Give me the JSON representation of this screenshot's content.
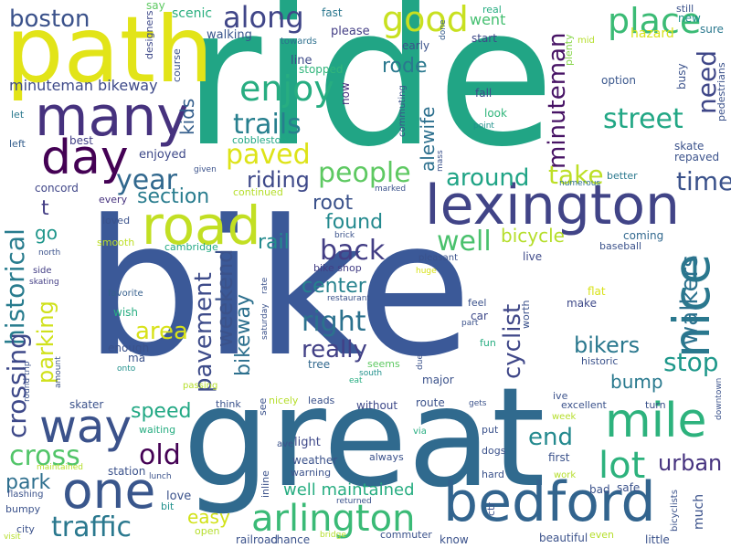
{
  "words": [
    {
      "text": "bike",
      "color": "#3b5998"
    },
    {
      "text": "ride",
      "color": "#21a585"
    },
    {
      "text": "great",
      "color": "#306a8e"
    },
    {
      "text": "path",
      "color": "#e2e418"
    },
    {
      "text": "lexington",
      "color": "#414487"
    },
    {
      "text": "bedford",
      "color": "#32648e"
    },
    {
      "text": "road",
      "color": "#c2df23"
    },
    {
      "text": "many",
      "color": "#46327e"
    },
    {
      "text": "mile",
      "color": "#2db27d"
    },
    {
      "text": "one",
      "color": "#39568c"
    },
    {
      "text": "way",
      "color": "#3b528b"
    },
    {
      "text": "nice",
      "color": "#2a788e"
    },
    {
      "text": "day",
      "color": "#440154"
    },
    {
      "text": "good",
      "color": "#c8e020"
    },
    {
      "text": "place",
      "color": "#3bbb75"
    },
    {
      "text": "arlington",
      "color": "#3aba76"
    },
    {
      "text": "lot",
      "color": "#2db27d"
    },
    {
      "text": "enjoy",
      "color": "#27ad81"
    },
    {
      "text": "along",
      "color": "#404688"
    },
    {
      "text": "historical",
      "color": "#287c8e"
    },
    {
      "text": "traffic",
      "color": "#2a788e"
    },
    {
      "text": "people",
      "color": "#5ec962"
    },
    {
      "text": "street",
      "color": "#22a785"
    },
    {
      "text": "trails",
      "color": "#277f8e"
    },
    {
      "text": "paved",
      "color": "#dde318"
    },
    {
      "text": "boston",
      "color": "#3b528b"
    },
    {
      "text": "year",
      "color": "#31688e"
    },
    {
      "text": "well",
      "color": "#4ac16d"
    },
    {
      "text": "cross",
      "color": "#52c569"
    },
    {
      "text": "crossing",
      "color": "#3e4989"
    },
    {
      "text": "time",
      "color": "#3b528b"
    },
    {
      "text": "right",
      "color": "#2c728e"
    },
    {
      "text": "back",
      "color": "#433e85"
    },
    {
      "text": "minuteman",
      "color": "#471365"
    },
    {
      "text": "stop",
      "color": "#1f988b"
    },
    {
      "text": "old",
      "color": "#440154"
    },
    {
      "text": "take",
      "color": "#bddf26"
    },
    {
      "text": "around",
      "color": "#20a486"
    },
    {
      "text": "need",
      "color": "#3f4788"
    },
    {
      "text": "walkers",
      "color": "#2c728e"
    },
    {
      "text": "pavement",
      "color": "#3e4c8a"
    },
    {
      "text": "bikers",
      "color": "#2a788e"
    },
    {
      "text": "weekend",
      "color": "#3b528b"
    },
    {
      "text": "cyclist",
      "color": "#3f4788"
    },
    {
      "text": "really",
      "color": "#424086"
    },
    {
      "text": "riding",
      "color": "#3e4989"
    },
    {
      "text": "urban",
      "color": "#46337f"
    },
    {
      "text": "end",
      "color": "#23898e"
    },
    {
      "text": "area",
      "color": "#d8e219"
    },
    {
      "text": "parking",
      "color": "#d0e11c"
    },
    {
      "text": "rode",
      "color": "#2a788e"
    },
    {
      "text": "section",
      "color": "#287c8e"
    },
    {
      "text": "root",
      "color": "#3b528b"
    },
    {
      "text": "found",
      "color": "#23898e"
    },
    {
      "text": "center",
      "color": "#26828e"
    },
    {
      "text": "bicycle",
      "color": "#b5de2b"
    },
    {
      "text": "rail",
      "color": "#238a8d"
    },
    {
      "text": "speed",
      "color": "#22a884"
    },
    {
      "text": "well maintained",
      "color": "#27ad81"
    },
    {
      "text": "bikeway",
      "color": "#2d708e"
    },
    {
      "text": "minuteman bikeway",
      "color": "#3e4a89"
    },
    {
      "text": "kids",
      "color": "#355f8d"
    },
    {
      "text": "alewife",
      "color": "#2d708e"
    },
    {
      "text": "park",
      "color": "#2e6f8e"
    },
    {
      "text": "easy",
      "color": "#d2e21b"
    },
    {
      "text": "bump",
      "color": "#29798e"
    },
    {
      "text": "went",
      "color": "#44bf70"
    },
    {
      "text": "go",
      "color": "#1f968b"
    },
    {
      "text": "t",
      "color": "#433d84"
    },
    {
      "text": "fast",
      "color": "#2a778e"
    },
    {
      "text": "walking",
      "color": "#39558c"
    },
    {
      "text": "scenic",
      "color": "#29af7f"
    },
    {
      "text": "say",
      "color": "#5ec962"
    },
    {
      "text": "designers",
      "color": "#3e4989"
    },
    {
      "text": "course",
      "color": "#3b528b"
    },
    {
      "text": "please",
      "color": "#433e85"
    },
    {
      "text": "real",
      "color": "#27ad81"
    },
    {
      "text": "done",
      "color": "#365c8d"
    },
    {
      "text": "start",
      "color": "#3e4989"
    },
    {
      "text": "early",
      "color": "#3b528b"
    },
    {
      "text": "hazard",
      "color": "#d8e219"
    },
    {
      "text": "sure",
      "color": "#2a788e"
    },
    {
      "text": "still",
      "color": "#3b528b"
    },
    {
      "text": "new",
      "color": "#21918c"
    },
    {
      "text": "mid",
      "color": "#b5de2b"
    },
    {
      "text": "plenty",
      "color": "#86d549"
    },
    {
      "text": "towards",
      "color": "#2d708e"
    },
    {
      "text": "line",
      "color": "#3e4a89"
    },
    {
      "text": "stopped",
      "color": "#31b57b"
    },
    {
      "text": "now",
      "color": "#472d7b"
    },
    {
      "text": "option",
      "color": "#39568c"
    },
    {
      "text": "coming",
      "color": "#31688e"
    },
    {
      "text": "pedestrians",
      "color": "#3b528b"
    },
    {
      "text": "busy",
      "color": "#3b528b"
    },
    {
      "text": "let",
      "color": "#2a788e"
    },
    {
      "text": "left",
      "color": "#355f8d"
    },
    {
      "text": "best",
      "color": "#424086"
    },
    {
      "text": "fall",
      "color": "#3e4989"
    },
    {
      "text": "look",
      "color": "#31b57b"
    },
    {
      "text": "point",
      "color": "#21918c"
    },
    {
      "text": "commuting",
      "color": "#3b528b"
    },
    {
      "text": "mass",
      "color": "#3b528b"
    },
    {
      "text": "cobblestone",
      "color": "#22a785"
    },
    {
      "text": "enjoyed",
      "color": "#3e4989"
    },
    {
      "text": "given",
      "color": "#3b528b"
    },
    {
      "text": "concord",
      "color": "#404688"
    },
    {
      "text": "every",
      "color": "#46327e"
    },
    {
      "text": "continued",
      "color": "#b5de2b"
    },
    {
      "text": "marked",
      "color": "#3b528b"
    },
    {
      "text": "numerous",
      "color": "#2d708e"
    },
    {
      "text": "better",
      "color": "#2a788e"
    },
    {
      "text": "skate",
      "color": "#3b528b"
    },
    {
      "text": "repaved",
      "color": "#3b528b"
    },
    {
      "text": "loved",
      "color": "#3b528b"
    },
    {
      "text": "smooth",
      "color": "#bddf26"
    },
    {
      "text": "cambridge",
      "color": "#22a884"
    },
    {
      "text": "brick",
      "color": "#3b528b"
    },
    {
      "text": "north",
      "color": "#3b528b"
    },
    {
      "text": "side",
      "color": "#433e85"
    },
    {
      "text": "skating",
      "color": "#433e85"
    },
    {
      "text": "bike shop",
      "color": "#433e85"
    },
    {
      "text": "huge",
      "color": "#d8e219"
    },
    {
      "text": "pleasant",
      "color": "#3b528b"
    },
    {
      "text": "live",
      "color": "#3e4989"
    },
    {
      "text": "baseball",
      "color": "#3b528b"
    },
    {
      "text": "flat",
      "color": "#d8e219"
    },
    {
      "text": "favorite",
      "color": "#355f8d"
    },
    {
      "text": "restaurant",
      "color": "#3b528b"
    },
    {
      "text": "feel",
      "color": "#3b528b"
    },
    {
      "text": "part",
      "color": "#3b528b"
    },
    {
      "text": "make",
      "color": "#3e4989"
    },
    {
      "text": "wish",
      "color": "#27ad81"
    },
    {
      "text": "saturday",
      "color": "#3b528b"
    },
    {
      "text": "rate",
      "color": "#3b528b"
    },
    {
      "text": "car",
      "color": "#3e4989"
    },
    {
      "text": "worth",
      "color": "#3b528b"
    },
    {
      "text": "fun",
      "color": "#27ad81"
    },
    {
      "text": "enough",
      "color": "#3b528b"
    },
    {
      "text": "ma",
      "color": "#3b528b"
    },
    {
      "text": "tree",
      "color": "#31688e"
    },
    {
      "text": "seems",
      "color": "#5ec962"
    },
    {
      "text": "eat",
      "color": "#27ad81"
    },
    {
      "text": "south",
      "color": "#21918c"
    },
    {
      "text": "due",
      "color": "#3b528b"
    },
    {
      "text": "major",
      "color": "#3b528b"
    },
    {
      "text": "historic",
      "color": "#3b528b"
    },
    {
      "text": "amount",
      "color": "#3b528b"
    },
    {
      "text": "onto",
      "color": "#21918c"
    },
    {
      "text": "round trip",
      "color": "#3b528b"
    },
    {
      "text": "passing",
      "color": "#b5de2b"
    },
    {
      "text": "think",
      "color": "#3b528b"
    },
    {
      "text": "see",
      "color": "#3b528b"
    },
    {
      "text": "nicely",
      "color": "#b5de2b"
    },
    {
      "text": "leads",
      "color": "#3b528b"
    },
    {
      "text": "without",
      "color": "#3e4989"
    },
    {
      "text": "route",
      "color": "#3b528b"
    },
    {
      "text": "gets",
      "color": "#3b528b"
    },
    {
      "text": "ive",
      "color": "#3b528b"
    },
    {
      "text": "excellent",
      "color": "#3b528b"
    },
    {
      "text": "turn",
      "color": "#3b528b"
    },
    {
      "text": "downtown",
      "color": "#3b528b"
    },
    {
      "text": "skater",
      "color": "#3b528b"
    },
    {
      "text": "waiting",
      "color": "#27ad81"
    },
    {
      "text": "ave",
      "color": "#3b528b"
    },
    {
      "text": "light",
      "color": "#3e4989"
    },
    {
      "text": "via",
      "color": "#27ad81"
    },
    {
      "text": "week",
      "color": "#b5de2b"
    },
    {
      "text": "always",
      "color": "#3b528b"
    },
    {
      "text": "put",
      "color": "#3b528b"
    },
    {
      "text": "dogs",
      "color": "#3b528b"
    },
    {
      "text": "first",
      "color": "#3b528b"
    },
    {
      "text": "safe",
      "color": "#3b528b"
    },
    {
      "text": "station",
      "color": "#3b528b"
    },
    {
      "text": "lunch",
      "color": "#3b528b"
    },
    {
      "text": "weather",
      "color": "#3b528b"
    },
    {
      "text": "warning",
      "color": "#3b528b"
    },
    {
      "text": "inline",
      "color": "#3b528b"
    },
    {
      "text": "hard",
      "color": "#3b528b"
    },
    {
      "text": "work",
      "color": "#b5de2b"
    },
    {
      "text": "ctr",
      "color": "#3b528b"
    },
    {
      "text": "bad",
      "color": "#3b528b"
    },
    {
      "text": "maintained",
      "color": "#b5de2b"
    },
    {
      "text": "flashing",
      "color": "#3b528b"
    },
    {
      "text": "bumpy",
      "color": "#3b528b"
    },
    {
      "text": "love",
      "color": "#3b528b"
    },
    {
      "text": "bit",
      "color": "#21918c"
    },
    {
      "text": "returned",
      "color": "#3b528b"
    },
    {
      "text": "much",
      "color": "#3b528b"
    },
    {
      "text": "bicyclists",
      "color": "#3b528b"
    },
    {
      "text": "city",
      "color": "#3b528b"
    },
    {
      "text": "open",
      "color": "#b5de2b"
    },
    {
      "text": "visit",
      "color": "#b5de2b"
    },
    {
      "text": "railroad",
      "color": "#3b528b"
    },
    {
      "text": "chance",
      "color": "#3b528b"
    },
    {
      "text": "bridge",
      "color": "#b5de2b"
    },
    {
      "text": "commuter",
      "color": "#3b528b"
    },
    {
      "text": "know",
      "color": "#3b528b"
    },
    {
      "text": "beautiful",
      "color": "#3b528b"
    },
    {
      "text": "even",
      "color": "#b5de2b"
    },
    {
      "text": "little",
      "color": "#3b528b"
    }
  ]
}
